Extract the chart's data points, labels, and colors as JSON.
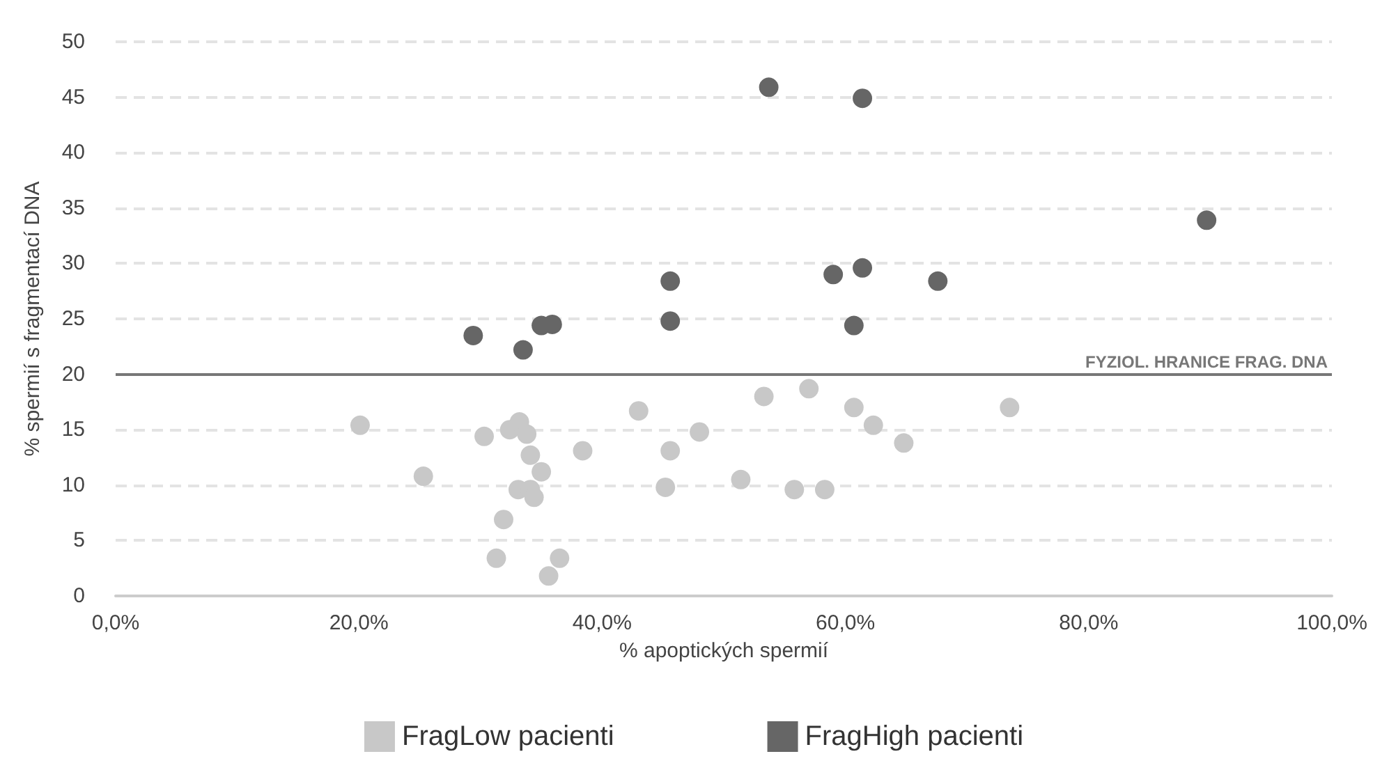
{
  "chart_data": {
    "type": "scatter",
    "xlabel": "% apoptických spermií",
    "ylabel": "% spermií s fragmentací DNA",
    "xlim": [
      0,
      100
    ],
    "xticks": [
      {
        "value": 0,
        "label": "0,0%"
      },
      {
        "value": 20,
        "label": "20,0%"
      },
      {
        "value": 40,
        "label": "40,0%"
      },
      {
        "value": 60,
        "label": "60,0%"
      },
      {
        "value": 80,
        "label": "80,0%"
      },
      {
        "value": 100,
        "label": "100,0%"
      }
    ],
    "ylim": [
      0,
      50
    ],
    "yticks": [
      0,
      5,
      10,
      15,
      20,
      25,
      30,
      35,
      40,
      45,
      50
    ],
    "grid": "y",
    "legend": "bottom",
    "marker": "circle",
    "ref_lines": [
      {
        "axis": "y",
        "value": 20,
        "label": "FYZIOL. HRANICE FRAG. DNA",
        "color": "#777777"
      }
    ],
    "series": [
      {
        "name": "FragLow pacienti",
        "color": "#c8c8c8",
        "x": [
          20.1,
          25.3,
          30.3,
          32.4,
          33.2,
          33.8,
          34.1,
          35.0,
          38.4,
          33.1,
          34.1,
          34.4,
          31.9,
          31.3,
          36.5,
          35.6,
          43.0,
          45.6,
          45.2,
          48.0,
          51.4,
          53.3,
          57.0,
          55.8,
          58.3,
          60.7,
          62.3,
          64.8,
          73.5
        ],
        "values": [
          15.4,
          10.8,
          14.4,
          15.0,
          15.7,
          14.6,
          12.7,
          11.2,
          13.1,
          9.6,
          9.6,
          8.9,
          6.9,
          3.4,
          3.4,
          1.8,
          16.7,
          13.1,
          9.8,
          14.8,
          10.5,
          18.0,
          18.7,
          9.6,
          9.6,
          17.0,
          15.4,
          13.8,
          17.0
        ]
      },
      {
        "name": "FragHigh pacienti",
        "color": "#666666",
        "x": [
          53.7,
          61.4,
          89.7,
          45.6,
          59.0,
          61.4,
          67.6,
          29.4,
          33.5,
          35.0,
          35.9,
          45.6,
          60.7
        ],
        "values": [
          45.9,
          44.9,
          33.9,
          28.4,
          29.0,
          29.6,
          28.4,
          23.5,
          22.2,
          24.4,
          24.5,
          24.8,
          24.4
        ]
      }
    ]
  }
}
